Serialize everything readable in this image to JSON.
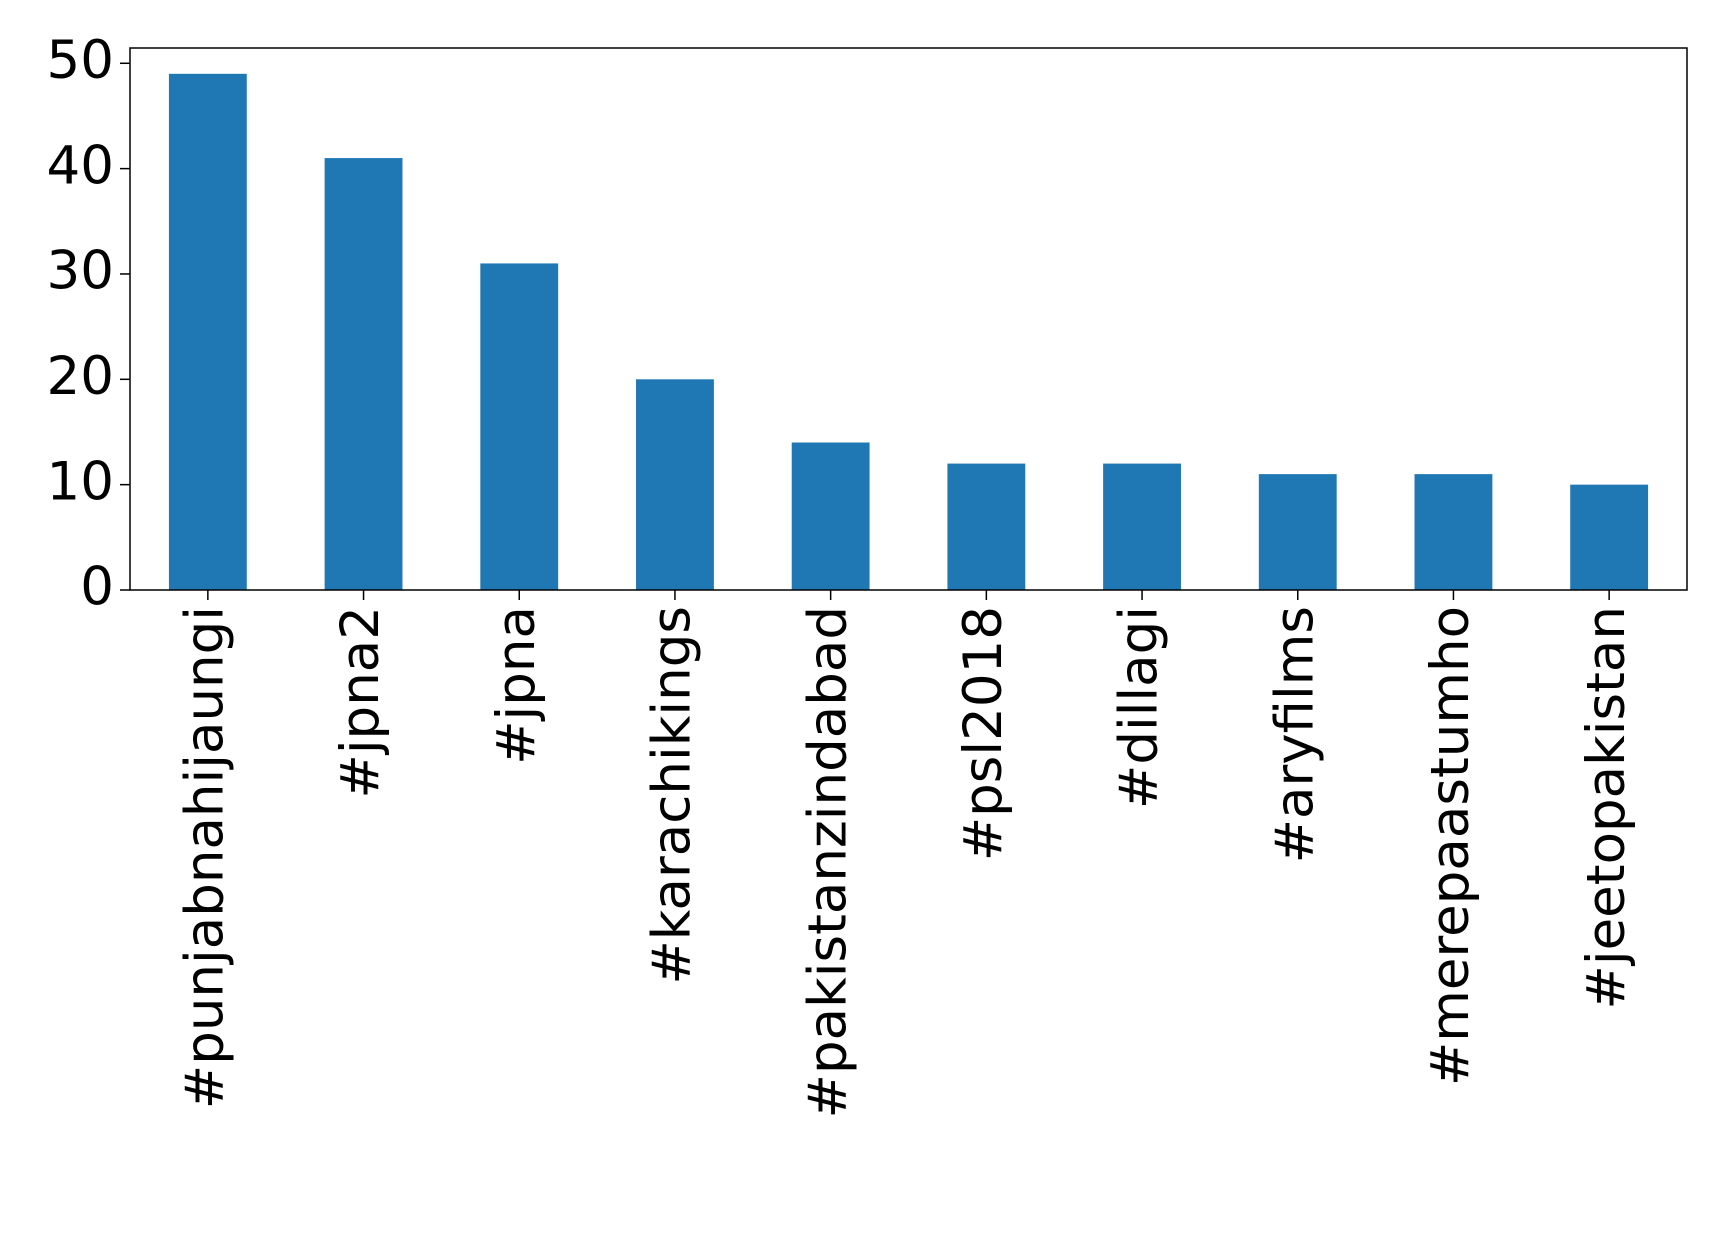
{
  "chart_data": {
    "type": "bar",
    "categories": [
      "#punjabnahijaungi",
      "#jpna2",
      "#jpna",
      "#karachikings",
      "#pakistanzindabad",
      "#psl2018",
      "#dillagi",
      "#aryfilms",
      "#merepaastumho",
      "#jeetopakistan"
    ],
    "values": [
      49,
      41,
      31,
      20,
      14,
      12,
      12,
      11,
      11,
      10
    ],
    "color": "#1f77b4",
    "ylim": [
      0,
      51.45
    ],
    "yticks": [
      0,
      10,
      20,
      30,
      40,
      50
    ],
    "grid": false
  }
}
